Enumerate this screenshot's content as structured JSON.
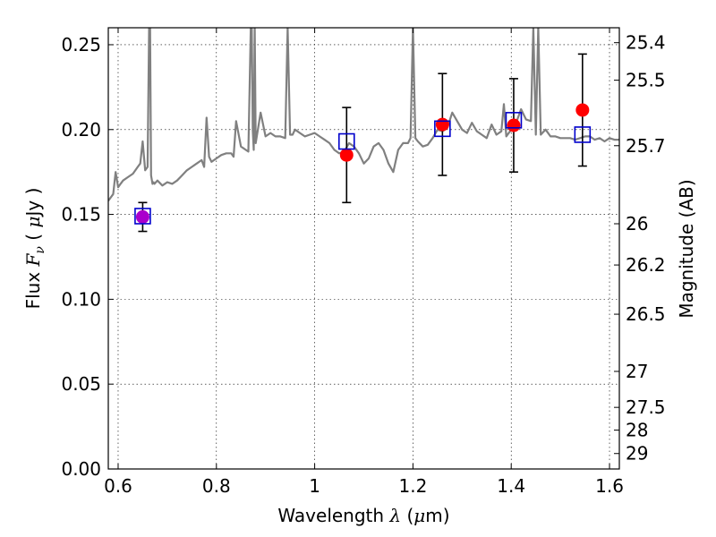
{
  "chart_data": {
    "type": "scatter",
    "xlabel": "Wavelength  λ (μm)",
    "ylabel": "Flux  Fν  ( μJy )",
    "ylabel_right": "Magnitude (AB)",
    "xlim": [
      0.58,
      1.62
    ],
    "ylim": [
      0.0,
      0.26
    ],
    "grid": true,
    "x_ticks": [
      {
        "value": 0.6,
        "label": "0.6"
      },
      {
        "value": 0.8,
        "label": "0.8"
      },
      {
        "value": 1.0,
        "label": "1"
      },
      {
        "value": 1.2,
        "label": "1.2"
      },
      {
        "value": 1.4,
        "label": "1.4"
      },
      {
        "value": 1.6,
        "label": "1.6"
      }
    ],
    "y_ticks": [
      {
        "value": 0.0,
        "label": "0.00"
      },
      {
        "value": 0.05,
        "label": "0.05"
      },
      {
        "value": 0.1,
        "label": "0.10"
      },
      {
        "value": 0.15,
        "label": "0.15"
      },
      {
        "value": 0.2,
        "label": "0.20"
      },
      {
        "value": 0.25,
        "label": "0.25"
      }
    ],
    "right_ticks": [
      {
        "flux": 0.2512,
        "label": "25.4"
      },
      {
        "flux": 0.2291,
        "label": "25.5"
      },
      {
        "flux": 0.1905,
        "label": "25.7"
      },
      {
        "flux": 0.1445,
        "label": "26"
      },
      {
        "flux": 0.1202,
        "label": "26.2"
      },
      {
        "flux": 0.0912,
        "label": "26.5"
      },
      {
        "flux": 0.0575,
        "label": "27"
      },
      {
        "flux": 0.0363,
        "label": "27.5"
      },
      {
        "flux": 0.0229,
        "label": "28"
      },
      {
        "flux": 0.0091,
        "label": "29"
      }
    ],
    "colors": {
      "spectrum": "#808080",
      "observed": "#ff0000",
      "model": "#0000cc",
      "errorbar": "#000000",
      "overlap": "#aa00cc"
    },
    "spectrum": {
      "x": [
        0.58,
        0.59,
        0.595,
        0.6,
        0.605,
        0.61,
        0.62,
        0.63,
        0.64,
        0.645,
        0.65,
        0.655,
        0.66,
        0.663,
        0.665,
        0.667,
        0.67,
        0.672,
        0.674,
        0.68,
        0.69,
        0.7,
        0.71,
        0.72,
        0.73,
        0.74,
        0.75,
        0.76,
        0.77,
        0.775,
        0.78,
        0.785,
        0.79,
        0.8,
        0.81,
        0.82,
        0.83,
        0.835,
        0.84,
        0.85,
        0.86,
        0.865,
        0.87,
        0.872,
        0.874,
        0.876,
        0.878,
        0.88,
        0.89,
        0.9,
        0.91,
        0.92,
        0.93,
        0.94,
        0.945,
        0.95,
        0.955,
        0.96,
        0.97,
        0.98,
        0.99,
        1.0,
        1.01,
        1.02,
        1.03,
        1.04,
        1.05,
        1.06,
        1.07,
        1.08,
        1.09,
        1.1,
        1.11,
        1.12,
        1.13,
        1.14,
        1.15,
        1.16,
        1.17,
        1.18,
        1.19,
        1.195,
        1.2,
        1.205,
        1.21,
        1.22,
        1.23,
        1.24,
        1.25,
        1.26,
        1.27,
        1.28,
        1.29,
        1.3,
        1.31,
        1.32,
        1.33,
        1.34,
        1.35,
        1.36,
        1.37,
        1.38,
        1.385,
        1.39,
        1.4,
        1.41,
        1.42,
        1.43,
        1.44,
        1.445,
        1.45,
        1.455,
        1.46,
        1.47,
        1.48,
        1.49,
        1.5,
        1.51,
        1.52,
        1.53,
        1.54,
        1.55,
        1.56,
        1.57,
        1.58,
        1.59,
        1.6,
        1.61,
        1.62
      ],
      "y": [
        0.158,
        0.162,
        0.175,
        0.166,
        0.168,
        0.17,
        0.172,
        0.174,
        0.178,
        0.18,
        0.193,
        0.176,
        0.178,
        0.26,
        0.26,
        0.173,
        0.168,
        0.169,
        0.168,
        0.17,
        0.167,
        0.169,
        0.168,
        0.17,
        0.173,
        0.176,
        0.178,
        0.18,
        0.182,
        0.178,
        0.207,
        0.184,
        0.181,
        0.183,
        0.185,
        0.186,
        0.186,
        0.184,
        0.205,
        0.19,
        0.188,
        0.187,
        0.26,
        0.26,
        0.2,
        0.188,
        0.26,
        0.192,
        0.21,
        0.196,
        0.198,
        0.196,
        0.196,
        0.195,
        0.26,
        0.197,
        0.197,
        0.2,
        0.198,
        0.196,
        0.197,
        0.198,
        0.196,
        0.194,
        0.192,
        0.188,
        0.186,
        0.187,
        0.192,
        0.19,
        0.186,
        0.18,
        0.183,
        0.19,
        0.192,
        0.188,
        0.18,
        0.175,
        0.188,
        0.192,
        0.192,
        0.195,
        0.26,
        0.195,
        0.193,
        0.19,
        0.191,
        0.195,
        0.2,
        0.199,
        0.201,
        0.21,
        0.205,
        0.2,
        0.198,
        0.204,
        0.199,
        0.197,
        0.195,
        0.203,
        0.197,
        0.199,
        0.215,
        0.196,
        0.2,
        0.204,
        0.212,
        0.206,
        0.205,
        0.26,
        0.197,
        0.26,
        0.197,
        0.2,
        0.196,
        0.196,
        0.195,
        0.195,
        0.195,
        0.194,
        0.195,
        0.196,
        0.196,
        0.194,
        0.195,
        0.193,
        0.195,
        0.194,
        0.194
      ]
    },
    "series": [
      {
        "x": [
          0.65,
          1.065,
          1.26,
          1.405,
          1.545
        ],
        "y": [
          0.1485,
          0.185,
          0.203,
          0.2025,
          0.2115
        ],
        "yerr": [
          0.0085,
          0.028,
          0.03,
          0.0275,
          0.033
        ]
      },
      {
        "x": [
          0.65,
          1.065,
          1.26,
          1.405,
          1.545
        ],
        "y": [
          0.149,
          0.193,
          0.2005,
          0.2055,
          0.197
        ]
      }
    ]
  }
}
